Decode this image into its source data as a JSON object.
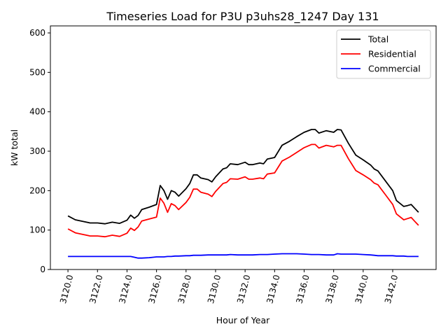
{
  "chart_data": {
    "type": "line",
    "title": "Timeseries Load for P3U p3uhs28_1247  Day 131",
    "xlabel": "Hour of Year",
    "ylabel": "kW total",
    "xlim": [
      3118.81,
      3144.94
    ],
    "ylim": [
      0,
      617.8
    ],
    "xticks": [
      3120,
      3122,
      3124,
      3126,
      3128,
      3130,
      3132,
      3134,
      3136,
      3138,
      3140,
      3142
    ],
    "xtick_labels": [
      "3120.0",
      "3122.0",
      "3124.0",
      "3126.0",
      "3128.0",
      "3130.0",
      "3132.0",
      "3134.0",
      "3136.0",
      "3138.0",
      "3140.0",
      "3142.0"
    ],
    "yticks": [
      0,
      100,
      200,
      300,
      400,
      500,
      600
    ],
    "ytick_labels": [
      "0",
      "100",
      "200",
      "300",
      "400",
      "500",
      "600"
    ],
    "grid": false,
    "legend_position": "top-right",
    "x": [
      3120,
      3120.5,
      3121,
      3121.5,
      3122,
      3122.5,
      3123,
      3123.5,
      3124,
      3124.25,
      3124.5,
      3124.75,
      3125,
      3125.5,
      3126,
      3126.25,
      3126.5,
      3126.75,
      3127,
      3127.25,
      3127.5,
      3128,
      3128.25,
      3128.5,
      3128.75,
      3129,
      3129.5,
      3129.75,
      3130,
      3130.5,
      3130.75,
      3131,
      3131.5,
      3132,
      3132.25,
      3132.5,
      3133,
      3133.25,
      3133.5,
      3134,
      3134.5,
      3135,
      3135.5,
      3136,
      3136.5,
      3136.75,
      3137,
      3137.5,
      3138,
      3138.25,
      3138.5,
      3139,
      3139.5,
      3140,
      3140.5,
      3140.75,
      3141,
      3141.5,
      3142,
      3142.25,
      3142.75,
      3143,
      3143.25,
      3143.5,
      3143.75
    ],
    "series": [
      {
        "name": "Total",
        "color": "#000000",
        "values": [
          136,
          126,
          122,
          118,
          118,
          116,
          120,
          117,
          125,
          138,
          130,
          137,
          152,
          158,
          165,
          213,
          200,
          178,
          200,
          196,
          186,
          205,
          218,
          240,
          240,
          232,
          228,
          222,
          235,
          255,
          258,
          268,
          266,
          272,
          266,
          266,
          270,
          268,
          280,
          284,
          315,
          325,
          337,
          348,
          355,
          355,
          346,
          352,
          348,
          355,
          354,
          320,
          290,
          278,
          265,
          255,
          250,
          225,
          200,
          175,
          160,
          162,
          165,
          155,
          145
        ]
      },
      {
        "name": "Residential",
        "color": "#ff0000",
        "values": [
          103,
          93,
          89,
          85,
          85,
          83,
          87,
          84,
          92,
          105,
          99,
          108,
          123,
          128,
          133,
          181,
          168,
          145,
          167,
          162,
          152,
          170,
          183,
          204,
          204,
          196,
          191,
          185,
          198,
          218,
          221,
          230,
          229,
          235,
          229,
          229,
          232,
          230,
          242,
          245,
          275,
          285,
          297,
          309,
          317,
          317,
          308,
          315,
          311,
          315,
          315,
          281,
          251,
          240,
          228,
          219,
          215,
          190,
          165,
          141,
          126,
          129,
          132,
          122,
          112
        ]
      },
      {
        "name": "Commercial",
        "color": "#0000ff",
        "values": [
          33,
          33,
          33,
          33,
          33,
          33,
          33,
          33,
          33,
          33,
          31,
          29,
          29,
          30,
          32,
          32,
          32,
          33,
          33,
          34,
          34,
          35,
          35,
          36,
          36,
          36,
          37,
          37,
          37,
          37,
          37,
          38,
          37,
          37,
          37,
          37,
          38,
          38,
          38,
          39,
          40,
          40,
          40,
          39,
          38,
          38,
          38,
          37,
          37,
          40,
          39,
          39,
          39,
          38,
          37,
          36,
          35,
          35,
          35,
          34,
          34,
          33,
          33,
          33,
          33
        ]
      }
    ]
  }
}
